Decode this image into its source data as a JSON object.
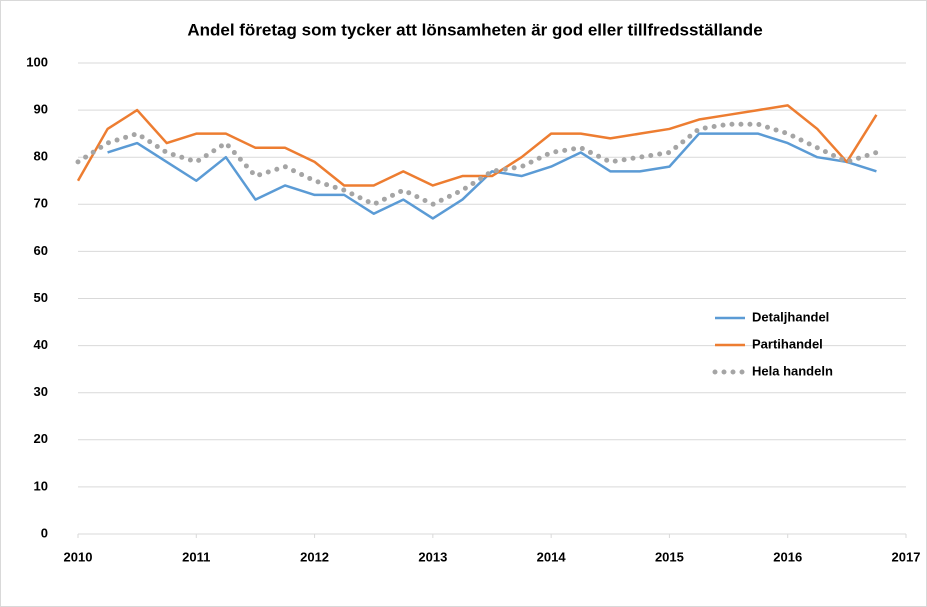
{
  "chart_data": {
    "type": "line",
    "title": "Andel företag som tycker att lönsamheten är god eller tillfredsställande",
    "x": [
      2010,
      2010.25,
      2010.5,
      2010.75,
      2011,
      2011.25,
      2011.5,
      2011.75,
      2012,
      2012.25,
      2012.5,
      2012.75,
      2013,
      2013.25,
      2013.5,
      2013.75,
      2014,
      2014.25,
      2014.5,
      2014.75,
      2015,
      2015.25,
      2015.5,
      2015.75,
      2016,
      2016.25,
      2016.5,
      2016.75
    ],
    "series": [
      {
        "name": "Detaljhandel",
        "color": "#5b9bd5",
        "style": "solid",
        "values": [
          null,
          81,
          83,
          79,
          75,
          80,
          71,
          74,
          72,
          72,
          68,
          71,
          67,
          71,
          77,
          76,
          78,
          81,
          77,
          77,
          78,
          85,
          85,
          85,
          83,
          80,
          79,
          77
        ]
      },
      {
        "name": "Partihandel",
        "color": "#ed7d31",
        "style": "solid",
        "values": [
          75,
          86,
          90,
          83,
          85,
          85,
          82,
          82,
          79,
          74,
          74,
          77,
          74,
          76,
          76,
          80,
          85,
          85,
          84,
          85,
          86,
          88,
          89,
          90,
          91,
          86,
          79,
          89
        ]
      },
      {
        "name": "Hela handeln",
        "color": "#a5a5a5",
        "style": "dotted",
        "values": [
          79,
          83,
          85,
          81,
          79,
          83,
          76,
          78,
          75,
          73,
          70,
          73,
          70,
          73,
          77,
          78,
          81,
          82,
          79,
          80,
          81,
          86,
          87,
          87,
          85,
          82,
          79,
          81
        ]
      }
    ],
    "xlim": [
      2010,
      2017
    ],
    "xticks": [
      2010,
      2011,
      2012,
      2013,
      2014,
      2015,
      2016,
      2017
    ],
    "ylim": [
      0,
      100
    ],
    "yticks": [
      0,
      10,
      20,
      30,
      40,
      50,
      60,
      70,
      80,
      90,
      100
    ],
    "grid": true,
    "legend": "right"
  }
}
